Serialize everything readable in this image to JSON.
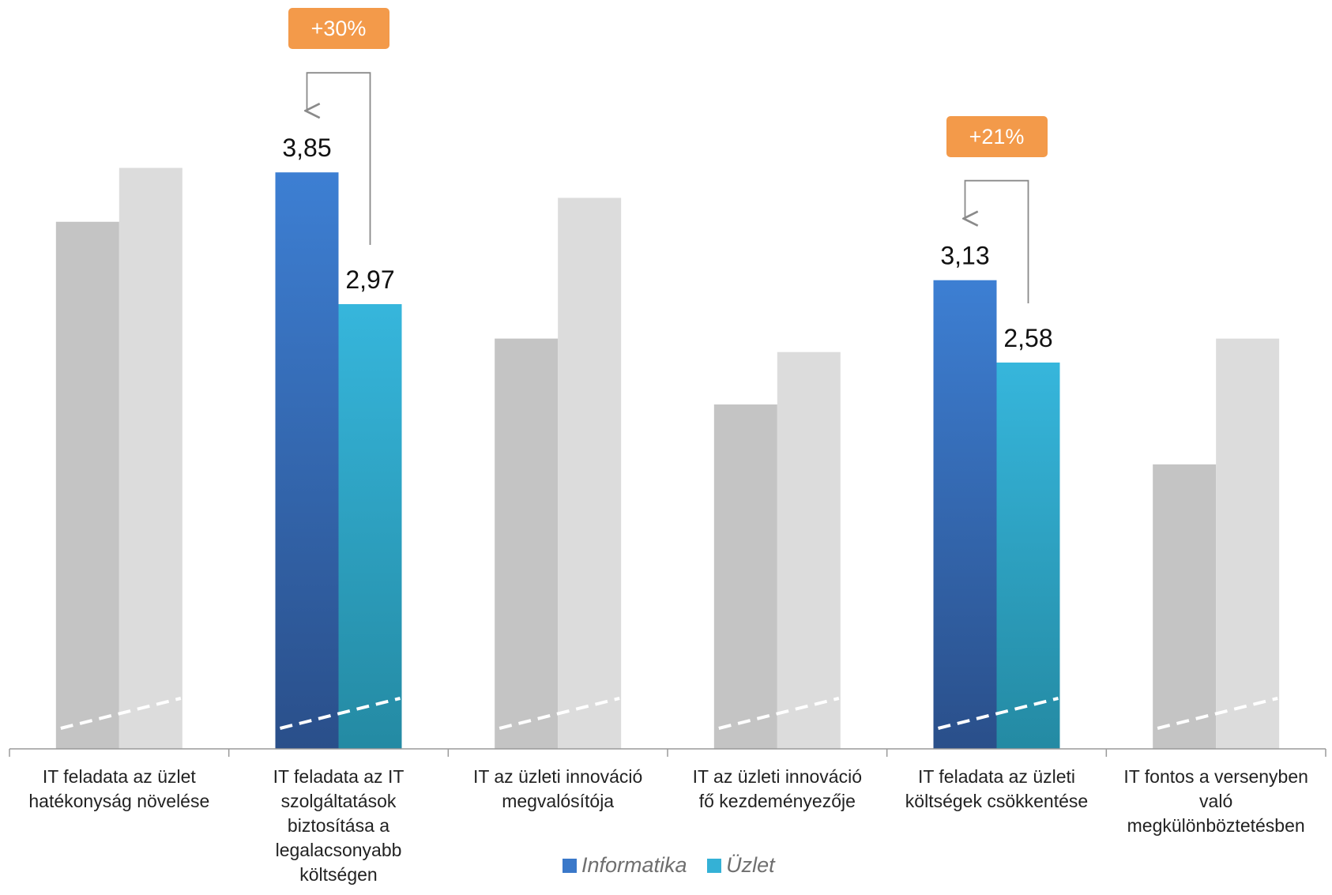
{
  "chart_data": {
    "type": "bar",
    "categories": [
      "IT feladata az üzlet hatékonyság növelése",
      "IT feladata az IT szolgáltatások biztosítása a legalacsonyabb költségen",
      "IT az üzleti innováció megvalósítója",
      "IT az üzleti innováció fő kezdeményezője",
      "IT feladata az üzleti költségek csökkentése",
      "IT fontos a versenyben való megkülönböztetésben"
    ],
    "category_lines": [
      [
        "IT feladata az üzlet",
        "hatékonyság növelése"
      ],
      [
        "IT feladata az IT",
        "szolgáltatások",
        "biztosítása a",
        "legalacsonyabb",
        "költségen"
      ],
      [
        "IT az üzleti innováció",
        "megvalósítója"
      ],
      [
        "IT az üzleti innováció",
        "fő kezdeményezője"
      ],
      [
        "IT feladata az üzleti",
        "költségek csökkentése"
      ],
      [
        "IT fontos a versenyben",
        "való",
        "megkülönböztetésben"
      ]
    ],
    "series": [
      {
        "name": "Informatika",
        "values": [
          3.52,
          3.85,
          2.74,
          2.3,
          3.13,
          1.9
        ],
        "highlight_color": "#3a78c9",
        "muted_color": "#c4c4c4"
      },
      {
        "name": "Üzlet",
        "values": [
          3.88,
          2.97,
          3.68,
          2.65,
          2.58,
          2.74
        ],
        "highlight_color": "#34b1d6",
        "muted_color": "#dcdcdc"
      }
    ],
    "highlighted_categories": [
      1,
      4
    ],
    "value_labels": [
      {
        "category": 1,
        "series": 0,
        "text": "3,85"
      },
      {
        "category": 1,
        "series": 1,
        "text": "2,97"
      },
      {
        "category": 4,
        "series": 0,
        "text": "3,13"
      },
      {
        "category": 4,
        "series": 1,
        "text": "2,58"
      }
    ],
    "callouts": [
      {
        "category": 1,
        "text": "+30%",
        "color": "#f39a4a"
      },
      {
        "category": 4,
        "text": "+21%",
        "color": "#f39a4a"
      }
    ],
    "ylim": [
      0,
      4.5
    ],
    "grid": false,
    "legend_position": "bottom",
    "title": "",
    "xlabel": "",
    "ylabel": ""
  },
  "legend": {
    "items": [
      {
        "label": "Informatika",
        "color": "#3a78c9"
      },
      {
        "label": "Üzlet",
        "color": "#34b1d6"
      }
    ]
  }
}
